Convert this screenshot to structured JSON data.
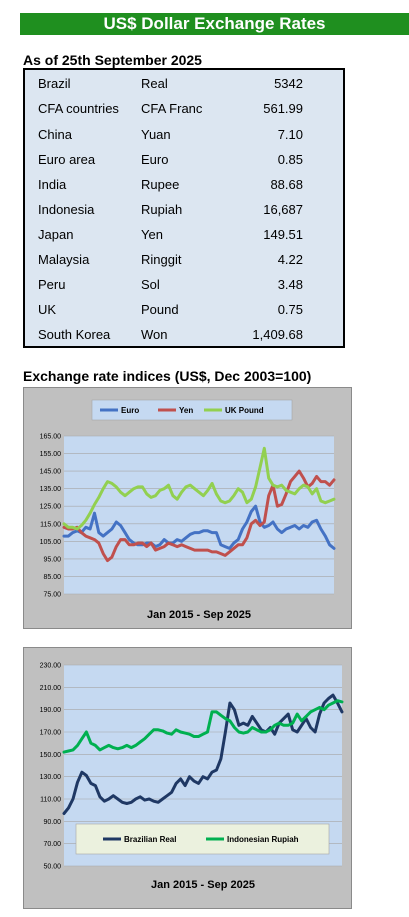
{
  "header": {
    "title": "US$ Dollar Exchange Rates",
    "as_of": "As of 25th September 2025"
  },
  "rates": [
    {
      "country": "Brazil",
      "currency": "Real",
      "value": "5342"
    },
    {
      "country": "CFA countries",
      "currency": "CFA Franc",
      "value": "561.99"
    },
    {
      "country": "China",
      "currency": "Yuan",
      "value": "7.10"
    },
    {
      "country": "Euro area",
      "currency": "Euro",
      "value": "0.85"
    },
    {
      "country": "India",
      "currency": "Rupee",
      "value": "88.68"
    },
    {
      "country": "Indonesia",
      "currency": "Rupiah",
      "value": "16,687"
    },
    {
      "country": "Japan",
      "currency": "Yen",
      "value": "149.51"
    },
    {
      "country": "Malaysia",
      "currency": "Ringgit",
      "value": "4.22"
    },
    {
      "country": "Peru",
      "currency": "Sol",
      "value": "3.48"
    },
    {
      "country": "UK",
      "currency": "Pound",
      "value": "0.75"
    },
    {
      "country": "South Korea",
      "currency": "Won",
      "value": "1,409.68"
    }
  ],
  "section_title": "Exchange rate indices (US$, Dec 2003=100)",
  "chart_data": [
    {
      "type": "line",
      "xlabel": "Jan 2015 - Sep 2025",
      "ylim": [
        75,
        165
      ],
      "yticks": [
        "165.00",
        "155.00",
        "145.00",
        "135.00",
        "125.00",
        "115.00",
        "105.00",
        "95.00",
        "85.00",
        "75.00"
      ],
      "legend_position": "top",
      "grid": true,
      "series": [
        {
          "name": "Euro",
          "color": "#4472c4",
          "values": [
            108,
            108,
            110,
            111,
            110,
            113,
            112,
            121,
            110,
            108,
            110,
            112,
            116,
            114,
            110,
            106,
            104,
            103,
            103,
            104,
            104,
            102,
            103,
            106,
            104,
            104,
            106,
            105,
            107,
            109,
            110,
            110,
            111,
            111,
            110,
            110,
            103,
            102,
            101,
            104,
            106,
            112,
            116,
            122,
            125,
            116,
            113,
            114,
            116,
            112,
            110,
            112,
            113,
            114,
            112,
            114,
            113,
            116,
            117,
            112,
            108,
            103,
            101
          ]
        },
        {
          "name": "Yen",
          "color": "#c0504d",
          "values": [
            113,
            112,
            112,
            113,
            110,
            108,
            107,
            106,
            104,
            98,
            94,
            96,
            102,
            106,
            106,
            103,
            103,
            104,
            104,
            102,
            104,
            100,
            101,
            102,
            104,
            103,
            102,
            103,
            102,
            101,
            100,
            100,
            100,
            100,
            99,
            99,
            98,
            97,
            99,
            101,
            103,
            103,
            107,
            115,
            117,
            114,
            116,
            131,
            137,
            125,
            126,
            132,
            139,
            142,
            145,
            141,
            136,
            138,
            142,
            139,
            139,
            137,
            140
          ]
        },
        {
          "name": "UK Pound",
          "color": "#92d050",
          "values": [
            115,
            113,
            113,
            112,
            114,
            117,
            121,
            126,
            130,
            135,
            139,
            138,
            136,
            133,
            131,
            133,
            135,
            136,
            136,
            132,
            130,
            131,
            134,
            135,
            137,
            131,
            129,
            133,
            136,
            137,
            135,
            133,
            131,
            134,
            138,
            132,
            128,
            127,
            128,
            131,
            135,
            133,
            127,
            129,
            136,
            147,
            158,
            141,
            137,
            136,
            137,
            134,
            133,
            132,
            135,
            137,
            136,
            132,
            135,
            128,
            127,
            128,
            129
          ]
        }
      ]
    },
    {
      "type": "line",
      "xlabel": "Jan 2015 - Sep 2025",
      "ylim": [
        50,
        230
      ],
      "yticks": [
        "230.00",
        "210.00",
        "190.00",
        "170.00",
        "150.00",
        "130.00",
        "110.00",
        "90.00",
        "70.00",
        "50.00"
      ],
      "legend_position": "bottom",
      "grid": true,
      "series": [
        {
          "name": "Brazilian Real",
          "color": "#1f3864",
          "values": [
            97,
            102,
            110,
            125,
            134,
            131,
            124,
            122,
            112,
            108,
            110,
            113,
            110,
            107,
            106,
            107,
            110,
            112,
            109,
            110,
            108,
            107,
            110,
            113,
            116,
            124,
            128,
            122,
            130,
            126,
            124,
            130,
            128,
            134,
            136,
            146,
            170,
            196,
            190,
            176,
            178,
            176,
            184,
            178,
            172,
            170,
            174,
            168,
            178,
            182,
            186,
            172,
            170,
            176,
            182,
            174,
            170,
            186,
            196,
            200,
            203,
            196,
            188
          ]
        },
        {
          "name": "Indonesian Rupiah",
          "color": "#00b050",
          "values": [
            152,
            153,
            154,
            158,
            164,
            170,
            160,
            158,
            154,
            156,
            158,
            156,
            155,
            156,
            158,
            156,
            158,
            161,
            164,
            168,
            172,
            172,
            171,
            169,
            168,
            172,
            170,
            169,
            168,
            166,
            166,
            168,
            170,
            188,
            188,
            185,
            182,
            180,
            174,
            170,
            169,
            170,
            174,
            172,
            170,
            170,
            172,
            176,
            178,
            176,
            176,
            178,
            186,
            180,
            184,
            188,
            190,
            192,
            190,
            194,
            196,
            198,
            197
          ]
        }
      ]
    }
  ]
}
